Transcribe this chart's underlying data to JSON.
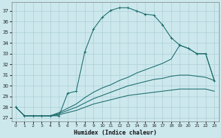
{
  "xlabel": "Humidex (Indice chaleur)",
  "background_color": "#cce8ed",
  "grid_color": "#aacdd5",
  "line_color": "#1a6b6b",
  "xlim": [
    -0.5,
    23.5
  ],
  "ylim": [
    26.7,
    37.8
  ],
  "xticks": [
    0,
    1,
    2,
    3,
    4,
    5,
    6,
    7,
    8,
    9,
    10,
    11,
    12,
    13,
    14,
    15,
    16,
    17,
    18,
    19,
    20,
    21,
    22,
    23
  ],
  "yticks": [
    27,
    28,
    29,
    30,
    31,
    32,
    33,
    34,
    35,
    36,
    37
  ],
  "curve1_x": [
    0,
    1,
    2,
    3,
    4,
    5,
    6,
    7,
    8,
    9,
    10,
    11,
    12,
    13,
    14,
    15,
    16,
    17,
    18,
    19,
    20,
    21,
    22,
    23
  ],
  "curve1_y": [
    28.0,
    27.2,
    27.2,
    27.2,
    27.2,
    27.2,
    29.3,
    29.5,
    33.2,
    35.3,
    36.4,
    37.05,
    37.3,
    37.3,
    37.0,
    36.7,
    36.6,
    35.7,
    34.5,
    33.8,
    33.5,
    33.0,
    33.0,
    30.5
  ],
  "curve2_x": [
    0,
    1,
    2,
    3,
    4,
    5,
    6,
    7,
    8,
    9,
    10,
    11,
    12,
    13,
    14,
    15,
    16,
    17,
    18,
    19,
    20,
    21,
    22,
    23
  ],
  "curve2_y": [
    28.0,
    27.2,
    27.2,
    27.2,
    27.2,
    27.5,
    27.9,
    28.3,
    28.9,
    29.4,
    29.8,
    30.1,
    30.5,
    30.8,
    31.2,
    31.5,
    31.8,
    32.1,
    32.5,
    33.8,
    33.5,
    33.0,
    33.0,
    30.5
  ],
  "curve3_x": [
    0,
    1,
    2,
    3,
    4,
    5,
    6,
    7,
    8,
    9,
    10,
    11,
    12,
    13,
    14,
    15,
    16,
    17,
    18,
    19,
    20,
    21,
    22,
    23
  ],
  "curve3_y": [
    28.0,
    27.2,
    27.2,
    27.2,
    27.2,
    27.4,
    27.7,
    28.0,
    28.4,
    28.8,
    29.1,
    29.4,
    29.7,
    30.0,
    30.2,
    30.4,
    30.6,
    30.7,
    30.9,
    31.0,
    31.0,
    30.9,
    30.8,
    30.5
  ],
  "curve4_x": [
    0,
    1,
    2,
    3,
    4,
    5,
    6,
    7,
    8,
    9,
    10,
    11,
    12,
    13,
    14,
    15,
    16,
    17,
    18,
    19,
    20,
    21,
    22,
    23
  ],
  "curve4_y": [
    28.0,
    27.2,
    27.2,
    27.2,
    27.2,
    27.3,
    27.5,
    27.7,
    28.0,
    28.3,
    28.5,
    28.7,
    28.9,
    29.1,
    29.2,
    29.3,
    29.4,
    29.5,
    29.6,
    29.7,
    29.7,
    29.7,
    29.7,
    29.5
  ]
}
